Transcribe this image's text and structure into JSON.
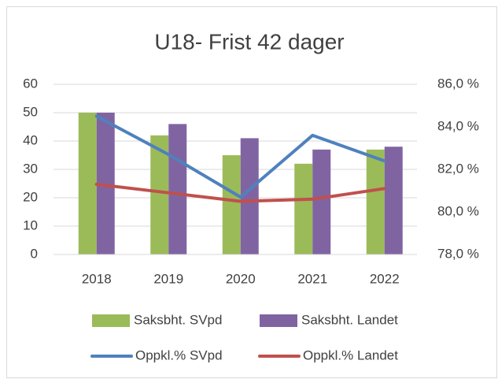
{
  "chart_data": {
    "type": "bar",
    "title": "U18- Frist 42 dager",
    "categories": [
      "2018",
      "2019",
      "2020",
      "2021",
      "2022"
    ],
    "series": [
      {
        "name": "Saksbht. SVpd",
        "color": "#9bbb59",
        "values": [
          50,
          42,
          35,
          32,
          37
        ]
      },
      {
        "name": "Saksbht. Landet",
        "color": "#8064a2",
        "values": [
          50,
          46,
          41,
          37,
          38
        ]
      },
      {
        "name": "Oppkl.% SVpd",
        "type": "line",
        "axis": "y2",
        "color": "#4f81bd",
        "values": [
          84.5,
          82.7,
          80.7,
          83.6,
          82.4
        ]
      },
      {
        "name": "Oppkl.% Landet",
        "type": "line",
        "axis": "y2",
        "color": "#c0504d",
        "values": [
          81.3,
          80.9,
          80.5,
          80.6,
          81.1
        ]
      }
    ],
    "ylim": [
      0,
      60
    ],
    "yticks": [
      0,
      10,
      20,
      30,
      40,
      50,
      60
    ],
    "y2lim": [
      78,
      86
    ],
    "y2ticks": [
      {
        "value": 78,
        "label": "78,0 %"
      },
      {
        "value": 80,
        "label": "80,0 %"
      },
      {
        "value": 82,
        "label": "82,0 %"
      },
      {
        "value": 84,
        "label": "84,0 %"
      },
      {
        "value": 86,
        "label": "86,0 %"
      }
    ],
    "grid": true,
    "legend": "bottom"
  }
}
